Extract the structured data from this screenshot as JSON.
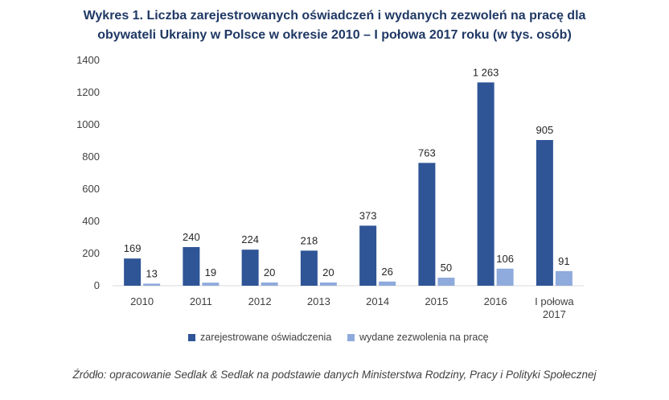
{
  "title": {
    "line1": "Wykres 1. Liczba zarejestrowanych oświadczeń i wydanych zezwoleń na pracę dla",
    "line2": "obywateli Ukrainy w Polsce w okresie 2010 – I połowa 2017 roku (w tys. osób)"
  },
  "chart_data": {
    "type": "bar",
    "categories": [
      "2010",
      "2011",
      "2012",
      "2013",
      "2014",
      "2015",
      "2016",
      "I połowa 2017"
    ],
    "series": [
      {
        "name": "zarejestrowane oświadczenia",
        "values": [
          169,
          240,
          224,
          218,
          373,
          763,
          1263,
          905
        ],
        "labels": [
          "169",
          "240",
          "224",
          "218",
          "373",
          "763",
          "1 263",
          "905"
        ],
        "color": "#2f5597"
      },
      {
        "name": "wydane zezwolenia na pracę",
        "values": [
          13,
          19,
          20,
          20,
          26,
          50,
          106,
          91
        ],
        "labels": [
          "13",
          "19",
          "20",
          "20",
          "26",
          "50",
          "106",
          "91"
        ],
        "color": "#8faadc"
      }
    ],
    "ylim": [
      0,
      1400
    ],
    "yticks": [
      0,
      200,
      400,
      600,
      800,
      1000,
      1200,
      1400
    ],
    "grid": false,
    "legend_position": "bottom"
  },
  "source": "Źródło: opracowanie Sedlak & Sedlak na podstawie danych Ministerstwa Rodziny, Pracy i Polityki Społecznej"
}
